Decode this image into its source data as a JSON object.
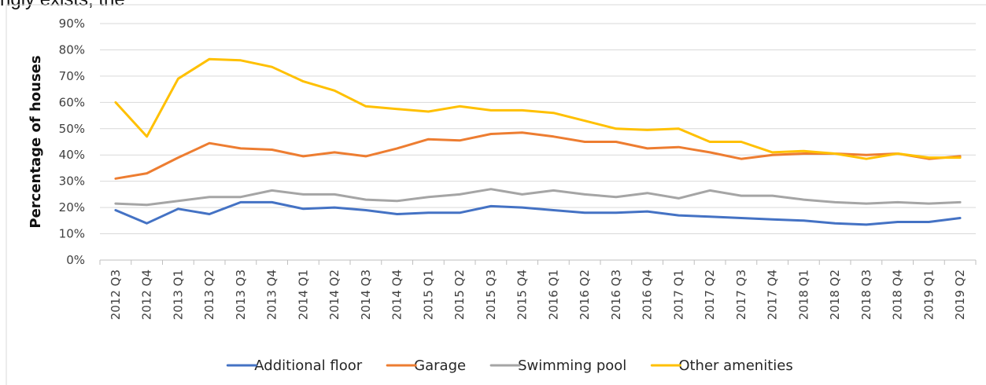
{
  "top_fragment": "ngly exists, the",
  "chart_data": {
    "type": "line",
    "title": "",
    "xlabel": "",
    "ylabel": "Percentage of houses",
    "ylim": [
      0,
      90
    ],
    "y_ticks": [
      "0%",
      "10%",
      "20%",
      "30%",
      "40%",
      "50%",
      "60%",
      "70%",
      "80%",
      "90%"
    ],
    "grid": true,
    "legend_position": "bottom",
    "categories": [
      "2012 Q3",
      "2012 Q4",
      "2013 Q1",
      "2013 Q2",
      "2013 Q3",
      "2013 Q4",
      "2014 Q1",
      "2014 Q2",
      "2014 Q3",
      "2014 Q4",
      "2015 Q1",
      "2015 Q2",
      "2015 Q3",
      "2015 Q4",
      "2016 Q1",
      "2016 Q2",
      "2016 Q3",
      "2016 Q4",
      "2017 Q1",
      "2017 Q2",
      "2017 Q3",
      "2017 Q4",
      "2018 Q1",
      "2018 Q2",
      "2018 Q3",
      "2018 Q4",
      "2019 Q1",
      "2019 Q2"
    ],
    "series": [
      {
        "name": "Additional floor",
        "color": "#4472c4",
        "values": [
          19,
          14,
          19.5,
          17.5,
          22,
          22,
          19.5,
          20,
          19,
          17.5,
          18,
          18,
          20.5,
          20,
          19,
          18,
          18,
          18.5,
          17,
          16.5,
          16,
          15.5,
          15,
          14,
          13.5,
          14.5,
          14.5,
          16
        ]
      },
      {
        "name": "Garage",
        "color": "#ed7d31",
        "values": [
          31,
          33,
          39,
          44.5,
          42.5,
          42,
          39.5,
          41,
          39.5,
          42.5,
          46,
          45.5,
          48,
          48.5,
          47,
          45,
          45,
          42.5,
          43,
          41,
          38.5,
          40,
          40.5,
          40.5,
          40,
          40.5,
          38.5,
          39.5
        ]
      },
      {
        "name": "Swimming pool",
        "color": "#a5a5a5",
        "values": [
          21.5,
          21,
          22.5,
          24,
          24,
          26.5,
          25,
          25,
          23,
          22.5,
          24,
          25,
          27,
          25,
          26.5,
          25,
          24,
          25.5,
          23.5,
          26.5,
          24.5,
          24.5,
          23,
          22,
          21.5,
          22,
          21.5,
          22
        ]
      },
      {
        "name": "Other amenities",
        "color": "#ffc000",
        "values": [
          60,
          47,
          69,
          76.5,
          76,
          73.5,
          68,
          64.5,
          58.5,
          57.5,
          56.5,
          58.5,
          57,
          57,
          56,
          53,
          50,
          49.5,
          50,
          45,
          45,
          41,
          41.5,
          40.5,
          38.5,
          40.5,
          39,
          39
        ]
      }
    ]
  }
}
